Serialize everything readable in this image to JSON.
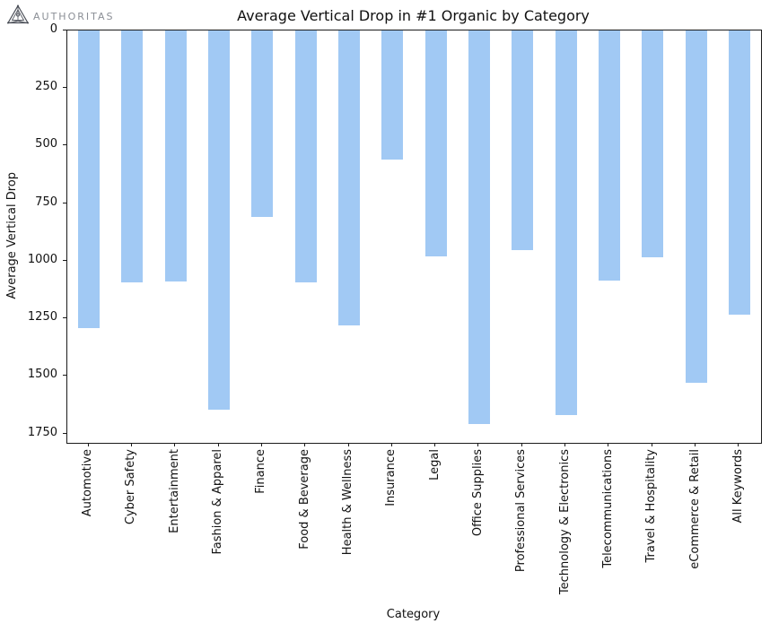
{
  "logo": {
    "text": "AUTHORITAS",
    "icon": "authoritas-triangle-icon"
  },
  "chart_data": {
    "type": "bar",
    "title": "Average Vertical Drop in #1 Organic by Category",
    "xlabel": "Category",
    "ylabel": "Average Vertical Drop",
    "categories": [
      "Automotive",
      "Cyber Safety",
      "Entertainment",
      "Fashion & Apparel",
      "Finance",
      "Food & Beverage",
      "Health & Wellness",
      "Insurance",
      "Legal",
      "Office Supplies",
      "Professional Services",
      "Technology & Electronics",
      "Telecommunications",
      "Travel & Hospitality",
      "eCommerce & Retail",
      "All Keywords"
    ],
    "values": [
      1290,
      1095,
      1090,
      1645,
      810,
      1095,
      1280,
      560,
      980,
      1710,
      955,
      1670,
      1085,
      985,
      1530,
      1235
    ],
    "yticks": [
      0,
      250,
      500,
      750,
      1000,
      1250,
      1500,
      1750
    ],
    "ylim": [
      0,
      1790
    ],
    "y_axis_inverted": true,
    "bar_color": "#a1c9f4",
    "background_color": "#ffffff",
    "grid": false,
    "legend": "none"
  }
}
